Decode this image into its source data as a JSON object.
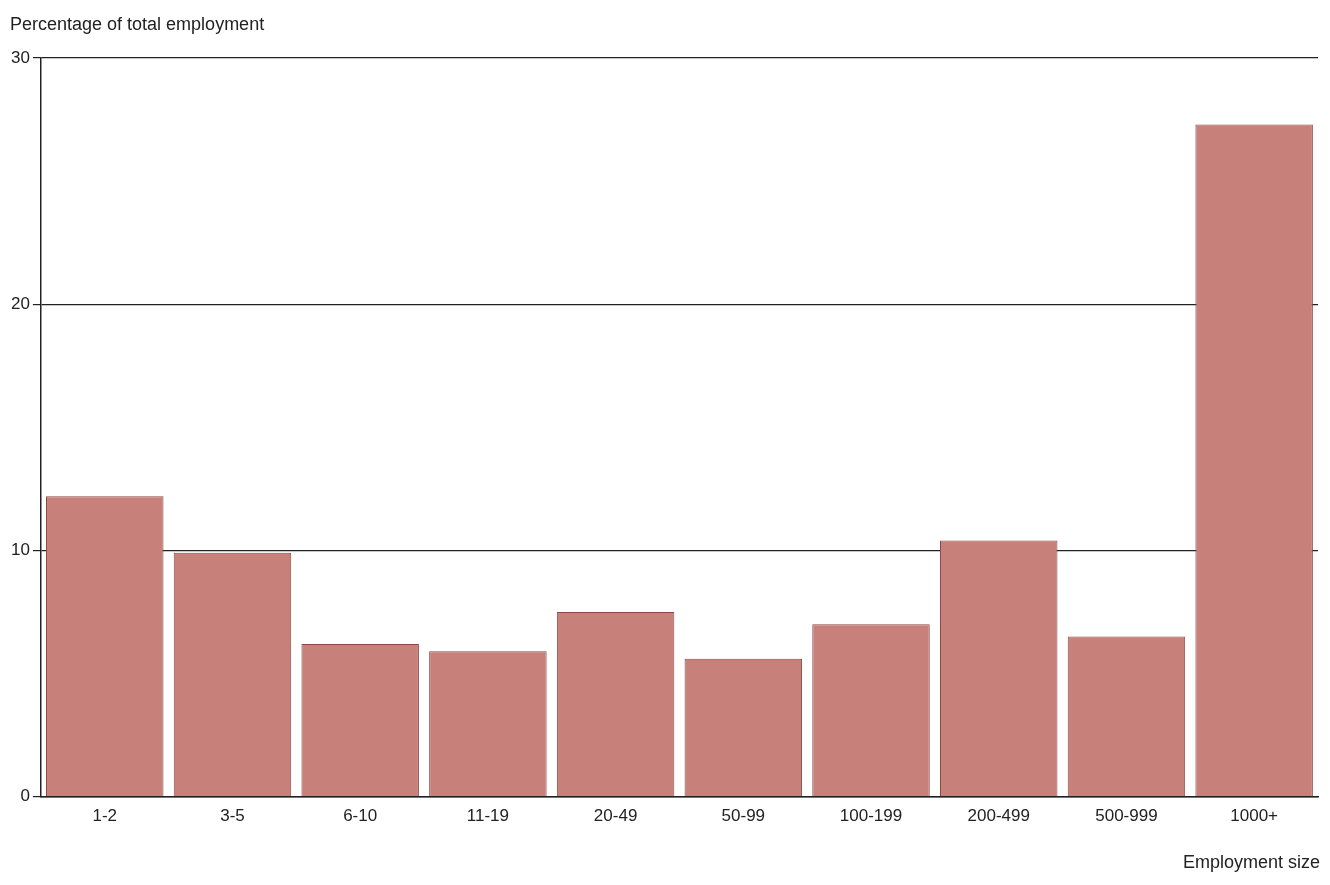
{
  "chart_data": {
    "type": "bar",
    "ylabel": "Percentage of total employment",
    "xlabel": "Employment size",
    "categories": [
      "1-2",
      "3-5",
      "6-10",
      "11-19",
      "20-49",
      "50-99",
      "100-199",
      "200-499",
      "500-999",
      "1000+"
    ],
    "values": [
      12.2,
      9.9,
      6.2,
      5.9,
      7.5,
      5.6,
      7.0,
      10.4,
      6.5,
      27.3
    ],
    "color": "#c8807a",
    "ylim": [
      0,
      30
    ],
    "yticks": [
      0,
      10,
      20,
      30
    ],
    "grid": "y",
    "legend": false
  }
}
